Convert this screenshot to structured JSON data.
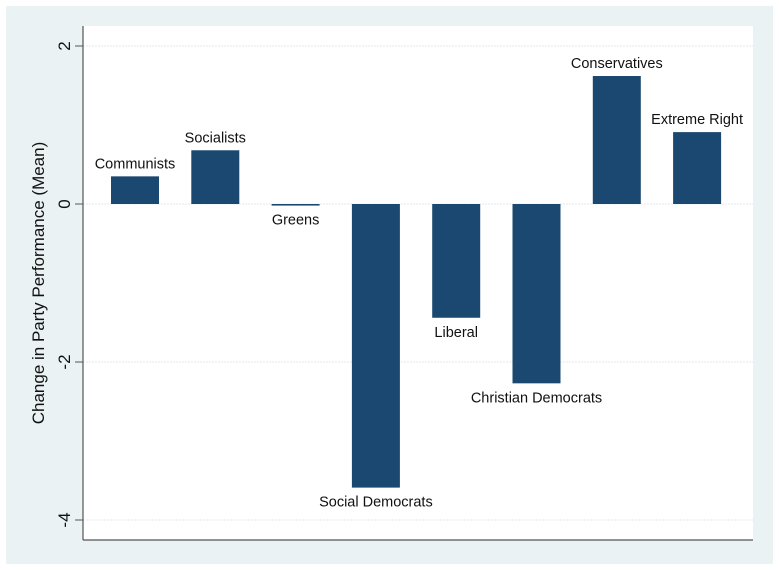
{
  "chart_data": {
    "type": "bar",
    "title": "",
    "xlabel": "",
    "ylabel": "Change in Party Performance (Mean)",
    "ylim": [
      -4.35,
      2.25
    ],
    "yticks": [
      {
        "value": 2,
        "label": "2"
      },
      {
        "value": 0,
        "label": "0"
      },
      {
        "value": -2,
        "label": "-2"
      },
      {
        "value": -4,
        "label": "-4"
      }
    ],
    "grid": true,
    "categories": [
      "Communists",
      "Socialists",
      "Greens",
      "Social Democrats",
      "Liberal",
      "Christian Democrats",
      "Conservatives",
      "Extreme Right"
    ],
    "values": [
      0.35,
      0.68,
      -0.02,
      -3.59,
      -1.44,
      -2.27,
      1.62,
      0.91
    ],
    "colors": {
      "bar": "#1b4870",
      "outer_background": "#eaf2f3",
      "plot_background": "#ffffff",
      "grid": "#e6eef0",
      "axis": "#555555"
    }
  }
}
